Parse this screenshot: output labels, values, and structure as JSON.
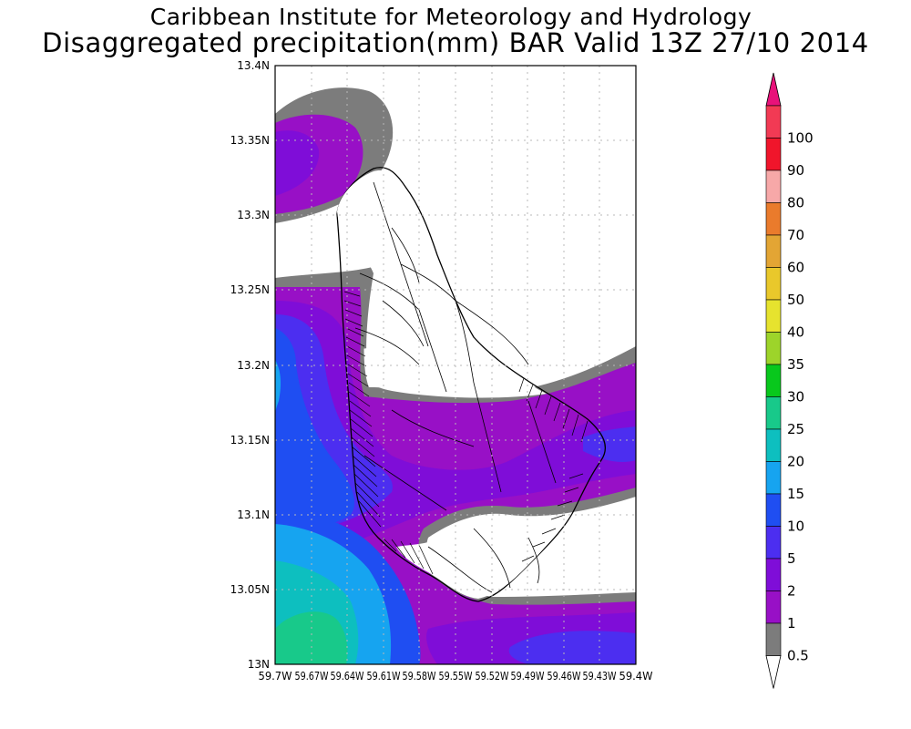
{
  "title": {
    "line1": "Caribbean Institute for Meteorology and Hydrology",
    "line2": "Disaggregated precipitation(mm) BAR Valid 13Z 27/10 2014"
  },
  "axes": {
    "lat_labels": [
      "13.4N",
      "13.35N",
      "13.3N",
      "13.25N",
      "13.2N",
      "13.15N",
      "13.1N",
      "13.05N",
      "13N"
    ],
    "lon_labels": [
      "59.7W",
      "59.67W",
      "59.64W",
      "59.61W",
      "59.58W",
      "59.55W",
      "59.52W",
      "59.49W",
      "59.46W",
      "59.43W",
      "59.4W"
    ]
  },
  "legend": {
    "levels": [
      {
        "label": "100",
        "color": "#f23a54"
      },
      {
        "label": "90",
        "color": "#f0152b"
      },
      {
        "label": "80",
        "color": "#f7a8a8"
      },
      {
        "label": "70",
        "color": "#ea7b2c"
      },
      {
        "label": "60",
        "color": "#e3a534"
      },
      {
        "label": "50",
        "color": "#e9c82b"
      },
      {
        "label": "40",
        "color": "#e6e32e"
      },
      {
        "label": "35",
        "color": "#9dd42a"
      },
      {
        "label": "30",
        "color": "#08c81c"
      },
      {
        "label": "25",
        "color": "#18c98a"
      },
      {
        "label": "20",
        "color": "#0dbfbf"
      },
      {
        "label": "15",
        "color": "#16a4f0"
      },
      {
        "label": "10",
        "color": "#1f4ef2"
      },
      {
        "label": "5",
        "color": "#4c2ef0"
      },
      {
        "label": "2",
        "color": "#7f0dd8"
      },
      {
        "label": "1",
        "color": "#9810c6"
      },
      {
        "label": "0.5",
        "color": "#7c7c7c"
      }
    ],
    "top_arrow_color": "#e8127a",
    "bottom_arrow_color": "#ffffff"
  }
}
